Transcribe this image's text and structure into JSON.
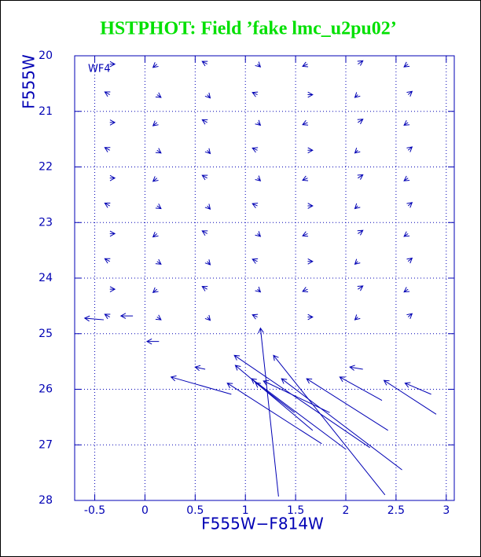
{
  "chart_data": {
    "type": "quiver",
    "title": "HSTPHOT: Field ’fake lmc_u2pu02’",
    "annotation": "WF4",
    "x_label": "F555W−F814W",
    "y_label": "F555W",
    "xlim": [
      -0.7,
      3.08
    ],
    "ylim": [
      28,
      20
    ],
    "xticks": [
      -0.5,
      0,
      0.5,
      1,
      1.5,
      2,
      2.5,
      3
    ],
    "yticks": [
      20,
      21,
      22,
      23,
      24,
      25,
      26,
      27,
      28
    ],
    "grid": true,
    "color": "#0000b4",
    "title_color": "#00e000",
    "x": [
      -0.35,
      0.12,
      0.62,
      1.12,
      1.62,
      2.12,
      2.62,
      -0.35,
      0.12,
      0.62,
      1.12,
      1.62,
      2.12,
      2.62,
      -0.35,
      0.12,
      0.62,
      1.12,
      1.62,
      2.12,
      2.62,
      -0.35,
      0.12,
      0.62,
      1.12,
      1.62,
      2.12,
      2.62,
      -0.35,
      0.12,
      0.62,
      1.12,
      1.62,
      2.12,
      2.62,
      -0.35,
      0.12,
      0.62,
      1.12,
      1.62,
      2.12,
      2.62,
      -0.35,
      0.12,
      0.62,
      1.12,
      1.62,
      2.12,
      2.62,
      -0.35,
      0.12,
      0.62,
      1.12,
      1.62,
      2.12,
      2.62,
      -0.35,
      0.12,
      0.62,
      1.12,
      1.62,
      2.12,
      2.62,
      -0.35,
      0.12,
      0.62,
      1.12,
      1.62,
      2.12,
      2.62,
      1.33,
      0.86,
      2.39,
      2.56,
      2.42,
      2.24,
      2.0,
      1.76,
      1.67,
      2.36,
      2.9,
      2.85,
      1.84,
      1.49,
      -0.41,
      -0.12,
      0.14,
      0.6,
      2.17
    ],
    "y": [
      20.15,
      20.15,
      20.15,
      20.15,
      20.15,
      20.15,
      20.15,
      20.7,
      20.7,
      20.7,
      20.7,
      20.7,
      20.7,
      20.7,
      21.2,
      21.2,
      21.2,
      21.2,
      21.2,
      21.2,
      21.2,
      21.7,
      21.7,
      21.7,
      21.7,
      21.7,
      21.7,
      21.7,
      22.2,
      22.2,
      22.2,
      22.2,
      22.2,
      22.2,
      22.2,
      22.7,
      22.7,
      22.7,
      22.7,
      22.7,
      22.7,
      22.7,
      23.2,
      23.2,
      23.2,
      23.2,
      23.2,
      23.2,
      23.2,
      23.7,
      23.7,
      23.7,
      23.7,
      23.7,
      23.7,
      23.7,
      24.2,
      24.2,
      24.2,
      24.2,
      24.2,
      24.2,
      24.2,
      24.7,
      24.7,
      24.7,
      24.7,
      24.7,
      24.7,
      24.7,
      27.93,
      26.09,
      27.9,
      27.45,
      26.74,
      27.05,
      27.08,
      26.98,
      26.74,
      26.2,
      26.45,
      26.09,
      26.42,
      26.42,
      24.75,
      24.68,
      25.14,
      25.64,
      25.64
    ],
    "dx": [
      0.05,
      -0.04,
      -0.05,
      0.03,
      -0.05,
      0.05,
      -0.04,
      -0.05,
      0.04,
      0.03,
      -0.05,
      0.05,
      -0.03,
      0.04,
      0.05,
      -0.04,
      -0.05,
      0.03,
      -0.05,
      0.05,
      -0.04,
      -0.05,
      0.04,
      0.03,
      -0.05,
      0.05,
      -0.03,
      0.04,
      0.05,
      -0.04,
      -0.05,
      0.03,
      -0.05,
      0.05,
      -0.04,
      -0.05,
      0.04,
      0.03,
      -0.05,
      0.05,
      -0.03,
      0.04,
      0.05,
      -0.04,
      -0.05,
      0.03,
      -0.05,
      0.05,
      -0.04,
      -0.05,
      0.04,
      0.03,
      -0.05,
      0.05,
      -0.03,
      0.04,
      0.05,
      -0.04,
      -0.05,
      0.03,
      -0.05,
      0.05,
      -0.04,
      -0.05,
      0.04,
      0.03,
      -0.05,
      0.05,
      -0.03,
      0.04,
      -0.18,
      -0.6,
      -1.11,
      -1.2,
      -0.81,
      -1.35,
      -0.94,
      -0.94,
      -0.77,
      -0.42,
      -0.52,
      -0.26,
      -0.66,
      -0.39,
      -0.19,
      -0.12,
      -0.12,
      -0.1,
      -0.13
    ],
    "dy": [
      0,
      0.06,
      -0.05,
      0.05,
      0.04,
      -0.06,
      0.05,
      -0.05,
      0.05,
      0.06,
      -0.04,
      0,
      0.05,
      -0.06,
      0,
      0.06,
      -0.05,
      0.05,
      0.04,
      -0.06,
      0.05,
      -0.05,
      0.05,
      0.06,
      -0.04,
      0,
      0.05,
      -0.06,
      0,
      0.06,
      -0.05,
      0.05,
      0.04,
      -0.06,
      0.05,
      -0.05,
      0.05,
      0.06,
      -0.04,
      0,
      0.05,
      -0.06,
      0,
      0.06,
      -0.05,
      0.05,
      0.04,
      -0.06,
      0.05,
      -0.05,
      0.05,
      0.06,
      -0.04,
      0,
      0.05,
      -0.06,
      0,
      0.06,
      -0.05,
      0.05,
      0.04,
      -0.06,
      0.05,
      -0.05,
      0.05,
      0.06,
      -0.04,
      0,
      0.05,
      -0.06,
      -3.03,
      -0.31,
      -2.51,
      -1.64,
      -0.93,
      -1.66,
      -1.27,
      -1.09,
      -1.17,
      -0.42,
      -0.61,
      -0.2,
      -0.57,
      -0.54,
      -0.03,
      0,
      0,
      -0.04,
      -0.04
    ]
  }
}
